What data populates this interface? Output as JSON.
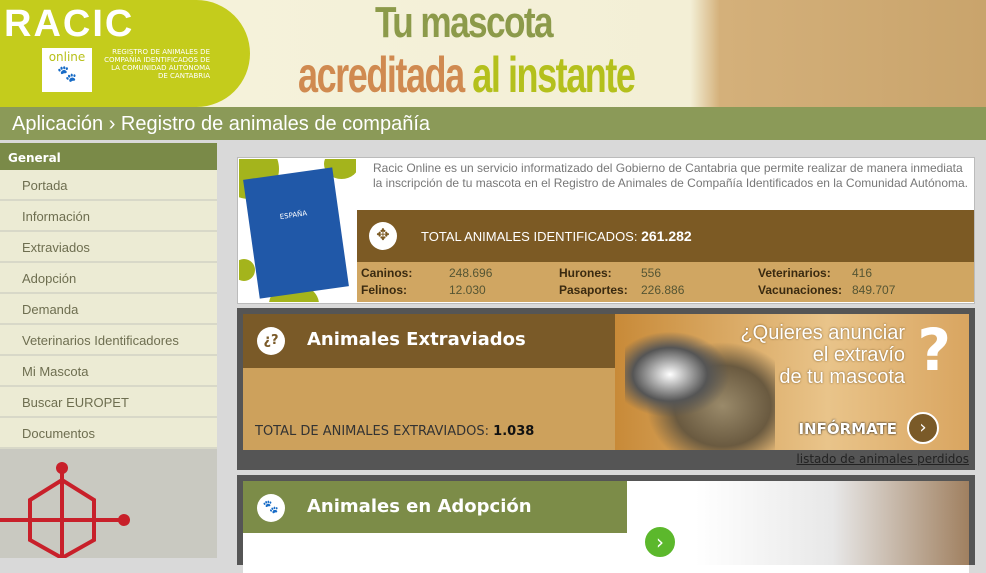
{
  "header": {
    "logo": "RACIC",
    "logo_sub": "online",
    "logo_caption": "REGISTRO DE ANIMALES DE COMPAÑÍA IDENTIFICADOS DE LA COMUNIDAD AUTÓNOMA DE CANTABRIA",
    "slogan_line1": "Tu mascota",
    "slogan_line2a": "acreditada",
    "slogan_line2b": " al instante"
  },
  "breadcrumb": "Aplicación › Registro de animales de compañía",
  "sidebar": {
    "heading": "General",
    "items": [
      {
        "label": "Portada"
      },
      {
        "label": "Información"
      },
      {
        "label": "Extraviados"
      },
      {
        "label": "Adopción"
      },
      {
        "label": "Demanda"
      },
      {
        "label": "Veterinarios Identificadores"
      },
      {
        "label": "Mi Mascota"
      },
      {
        "label": "Buscar EUROPET"
      },
      {
        "label": "Documentos"
      }
    ]
  },
  "info": {
    "passport_text": "ESPAÑA",
    "description": "Racic Online es un servicio informatizado del Gobierno de Cantabria que permite realizar de manera inmediata la inscripción de tu mascota en el Registro de Animales de Compañía Identificados en la Comunidad Autónoma.",
    "total_label": "TOTAL ANIMALES IDENTIFICADOS:",
    "total_value": "261.282",
    "stats": [
      {
        "label": "Caninos:",
        "value": "248.696"
      },
      {
        "label": "Felinos:",
        "value": "12.030"
      },
      {
        "label": "Hurones:",
        "value": "556"
      },
      {
        "label": "Pasaportes:",
        "value": "226.886"
      },
      {
        "label": "Veterinarios:",
        "value": "416"
      },
      {
        "label": "Vacunaciones:",
        "value": "849.707"
      }
    ]
  },
  "lost": {
    "icon": "¿?",
    "title": "Animales Extraviados",
    "total_label": "TOTAL DE ANIMALES EXTRAVIADOS:",
    "total_value": "1.038",
    "ask_line1": "¿Quieres anunciar",
    "ask_line2": "el extravío",
    "ask_line3": "de tu mascota",
    "button": "INFÓRMATE",
    "link": "listado de animales perdidos"
  },
  "adopt": {
    "title": "Animales en Adopción"
  },
  "colors": {
    "brown": "#7a5a28",
    "olive": "#8b9a58",
    "lime": "#c4cc1c",
    "tan": "#cda15c"
  }
}
